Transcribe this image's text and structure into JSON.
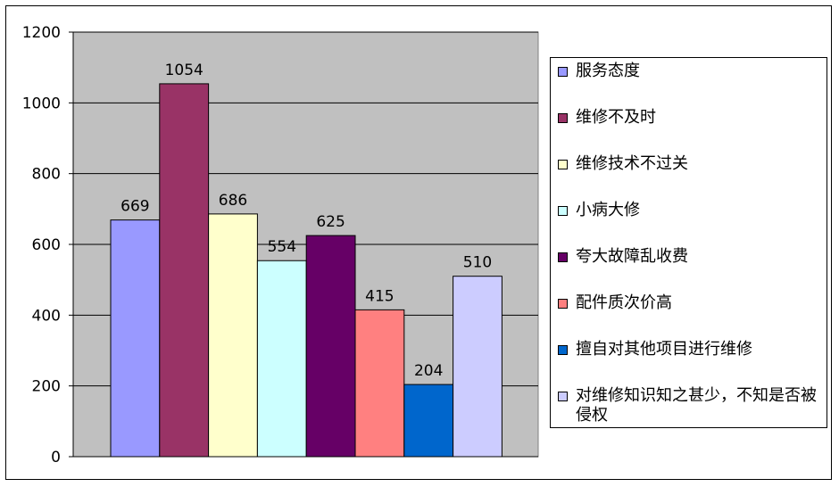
{
  "chart_data": {
    "type": "bar",
    "title": "",
    "xlabel": "",
    "ylabel": "",
    "ylim": [
      0,
      1200
    ],
    "yticks": [
      0,
      200,
      400,
      600,
      800,
      1000,
      1200
    ],
    "grid": true,
    "legend_position": "right",
    "categories": [
      "服务态度",
      "维修不及时",
      "维修技术不过关",
      "小病大修",
      "夸大故障乱收费",
      "配件质次价高",
      "擅自对其他项目进行维修",
      "对维修知识知之甚少，不知是否被侵权"
    ],
    "values": [
      669,
      1054,
      686,
      554,
      625,
      415,
      204,
      510
    ],
    "colors": [
      "#9999FF",
      "#993366",
      "#FFFFCC",
      "#CCFFFF",
      "#660066",
      "#FF8080",
      "#0066CC",
      "#CCCCFF"
    ],
    "plot_background": "#C0C0C0"
  }
}
